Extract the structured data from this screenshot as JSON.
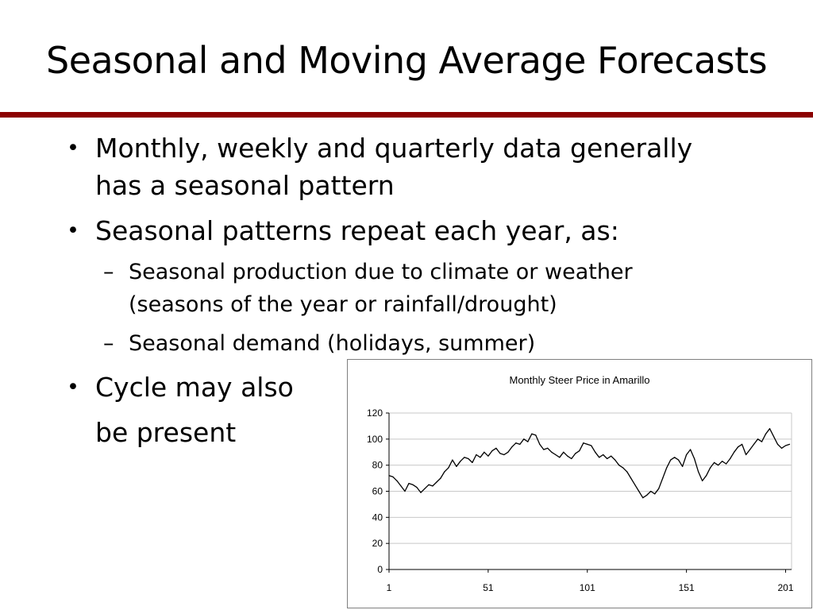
{
  "slide": {
    "title": "Seasonal and Moving Average Forecasts",
    "bullets": [
      {
        "line1": "Monthly, weekly and quarterly data generally",
        "line2": "has a seasonal pattern"
      },
      {
        "line1": "Seasonal patterns repeat each year, as:"
      },
      {
        "line1": "Cycle may also",
        "line2": "be present"
      }
    ],
    "sub_bullets": [
      {
        "line1": "Seasonal production due to climate or weather",
        "line2": "(seasons of the year or rainfall/drought)"
      },
      {
        "line1": "Seasonal demand (holidays, summer)"
      }
    ],
    "bullet_glyph": "•",
    "dash_glyph": "–",
    "accent_color": "#8b0000"
  },
  "chart_data": {
    "type": "line",
    "title": "Monthly Steer Price in Amarillo",
    "xlabel": "",
    "ylabel": "",
    "xlim": [
      1,
      204
    ],
    "ylim": [
      0,
      120
    ],
    "x_ticks": [
      1,
      51,
      101,
      151,
      201
    ],
    "y_ticks": [
      0,
      20,
      40,
      60,
      80,
      100,
      120
    ],
    "grid": "horizontal",
    "legend": "none",
    "line_color": "#000000",
    "series": [
      {
        "x": [
          1,
          3,
          5,
          7,
          9,
          11,
          13,
          15,
          17,
          19,
          21,
          23,
          25,
          27,
          29,
          31,
          33,
          35,
          37,
          39,
          41,
          43,
          45,
          47,
          49,
          51,
          53,
          55,
          57,
          59,
          61,
          63,
          65,
          67,
          69,
          71,
          73,
          75,
          77,
          79,
          81,
          83,
          85,
          87,
          89,
          91,
          93,
          95,
          97,
          99,
          101,
          103,
          105,
          107,
          109,
          111,
          113,
          115,
          117,
          119,
          121,
          123,
          125,
          127,
          129,
          131,
          133,
          135,
          137,
          139,
          141,
          143,
          145,
          147,
          149,
          151,
          153,
          155,
          157,
          159,
          161,
          163,
          165,
          167,
          169,
          171,
          173,
          175,
          177,
          179,
          181,
          183,
          185,
          187,
          189,
          191,
          193,
          195,
          197,
          199,
          201,
          203
        ],
        "y": [
          72,
          71,
          68,
          64,
          60,
          66,
          65,
          63,
          59,
          62,
          65,
          64,
          67,
          70,
          75,
          78,
          84,
          79,
          83,
          86,
          85,
          82,
          88,
          86,
          90,
          87,
          91,
          93,
          89,
          88,
          90,
          94,
          97,
          96,
          100,
          98,
          104,
          103,
          96,
          92,
          93,
          90,
          88,
          86,
          90,
          87,
          85,
          89,
          91,
          97,
          96,
          95,
          90,
          86,
          88,
          85,
          87,
          84,
          80,
          78,
          75,
          70,
          65,
          60,
          55,
          57,
          60,
          58,
          62,
          70,
          78,
          84,
          86,
          84,
          79,
          88,
          92,
          85,
          75,
          68,
          72,
          78,
          82,
          80,
          83,
          81,
          85,
          90,
          94,
          96,
          88,
          92,
          96,
          100,
          98,
          104,
          108,
          102,
          96,
          93,
          95,
          96
        ]
      }
    ]
  }
}
